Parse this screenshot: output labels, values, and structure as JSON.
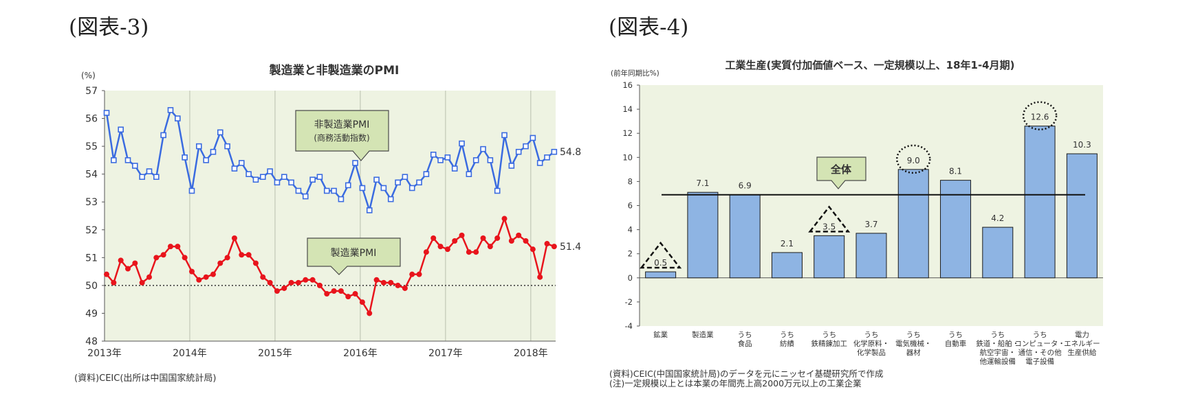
{
  "figures": {
    "left_label": "(図表-3)",
    "right_label": "(図表-4)"
  },
  "chart_data": [
    {
      "type": "line",
      "title": "製造業と非製造業のPMI",
      "ylabel": "(%)",
      "ylim": [
        48,
        57
      ],
      "yticks": [
        "48",
        "49",
        "50",
        "51",
        "52",
        "53",
        "54",
        "55",
        "56",
        "57"
      ],
      "year_labels": [
        "2013年",
        "2014年",
        "2015年",
        "2016年",
        "2017年",
        "2018年"
      ],
      "x_start": "2013-01",
      "reference_line": 50,
      "grid": "vertical year lines",
      "series": [
        {
          "name": "非製造業PMI",
          "sub": "(商務活動指数)",
          "color": "#3a6be0",
          "marker": "square",
          "end_label": "54.8",
          "values": [
            56.2,
            54.5,
            55.6,
            54.5,
            54.3,
            53.9,
            54.1,
            53.9,
            55.4,
            56.3,
            56.0,
            54.6,
            53.4,
            55.0,
            54.5,
            54.8,
            55.5,
            55.0,
            54.2,
            54.4,
            54.0,
            53.8,
            53.9,
            54.1,
            53.7,
            53.9,
            53.7,
            53.4,
            53.2,
            53.8,
            53.9,
            53.4,
            53.4,
            53.1,
            53.6,
            54.4,
            53.5,
            52.7,
            53.8,
            53.5,
            53.1,
            53.7,
            53.9,
            53.5,
            53.7,
            54.0,
            54.7,
            54.5,
            54.6,
            54.2,
            55.1,
            54.0,
            54.5,
            54.9,
            54.5,
            53.4,
            55.4,
            54.3,
            54.8,
            55.0,
            55.3,
            54.4,
            54.6,
            54.8
          ]
        },
        {
          "name": "製造業PMI",
          "color": "#e8141c",
          "marker": "circle",
          "end_label": "51.4",
          "values": [
            50.4,
            50.1,
            50.9,
            50.6,
            50.8,
            50.1,
            50.3,
            51.0,
            51.1,
            51.4,
            51.4,
            51.0,
            50.5,
            50.2,
            50.3,
            50.4,
            50.8,
            51.0,
            51.7,
            51.1,
            51.1,
            50.8,
            50.3,
            50.1,
            49.8,
            49.9,
            50.1,
            50.1,
            50.2,
            50.2,
            50.0,
            49.7,
            49.8,
            49.8,
            49.6,
            49.7,
            49.4,
            49.0,
            50.2,
            50.1,
            50.1,
            50.0,
            49.9,
            50.4,
            50.4,
            51.2,
            51.7,
            51.4,
            51.3,
            51.6,
            51.8,
            51.2,
            51.2,
            51.7,
            51.4,
            51.7,
            52.4,
            51.6,
            51.8,
            51.6,
            51.3,
            50.3,
            51.5,
            51.4
          ]
        }
      ],
      "source": "(資料)CEIC(出所は中国国家統計局)"
    },
    {
      "type": "bar",
      "title": "工業生産(実質付加価値ベース、一定規模以上、18年1-4月期)",
      "ylabel": "(前年同期比%)",
      "ylim": [
        -4,
        16
      ],
      "yticks": [
        "-4",
        "-2",
        "0",
        "2",
        "4",
        "6",
        "8",
        "10",
        "12",
        "14",
        "16"
      ],
      "categories": [
        [
          "鉱業"
        ],
        [
          "製造業"
        ],
        [
          "うち",
          "食品"
        ],
        [
          "うち",
          "紡績"
        ],
        [
          "うち",
          "鉄精錬加工"
        ],
        [
          "うち",
          "化学原料・",
          "化学製品"
        ],
        [
          "うち",
          "電気機械・",
          "器材"
        ],
        [
          "うち",
          "自動車"
        ],
        [
          "うち",
          "鉄道・船舶・",
          "航空宇宙・",
          "他運輸設備"
        ],
        [
          "うち",
          "コンピュータ・",
          "通信・その他",
          "電子設備"
        ],
        [
          "電力",
          "エネルギー",
          "生産供給"
        ]
      ],
      "values": [
        0.5,
        7.1,
        6.9,
        2.1,
        3.5,
        3.7,
        9.0,
        8.1,
        4.2,
        12.6,
        10.3
      ],
      "value_labels": [
        "0.5",
        "7.1",
        "6.9",
        "2.1",
        "3.5",
        "3.7",
        "9.0",
        "8.1",
        "4.2",
        "12.6",
        "10.3"
      ],
      "bar_color": "#8eb4e3",
      "reference_line": {
        "label": "全体",
        "value": 6.9
      },
      "highlight_up": [
        6,
        9
      ],
      "highlight_down": [
        0,
        4
      ],
      "notes": [
        "(資料)CEIC(中国国家統計局)のデータを元にニッセイ基礎研究所で作成",
        "(注)一定規模以上とは本業の年間売上高2000万元以上の工業企業"
      ]
    }
  ],
  "colors": {
    "plot_bg": "#eef3e2",
    "callout_bg": "#d4e4b4",
    "callout_border": "#4a4a4a",
    "bar_border": "#1a1a1a"
  }
}
